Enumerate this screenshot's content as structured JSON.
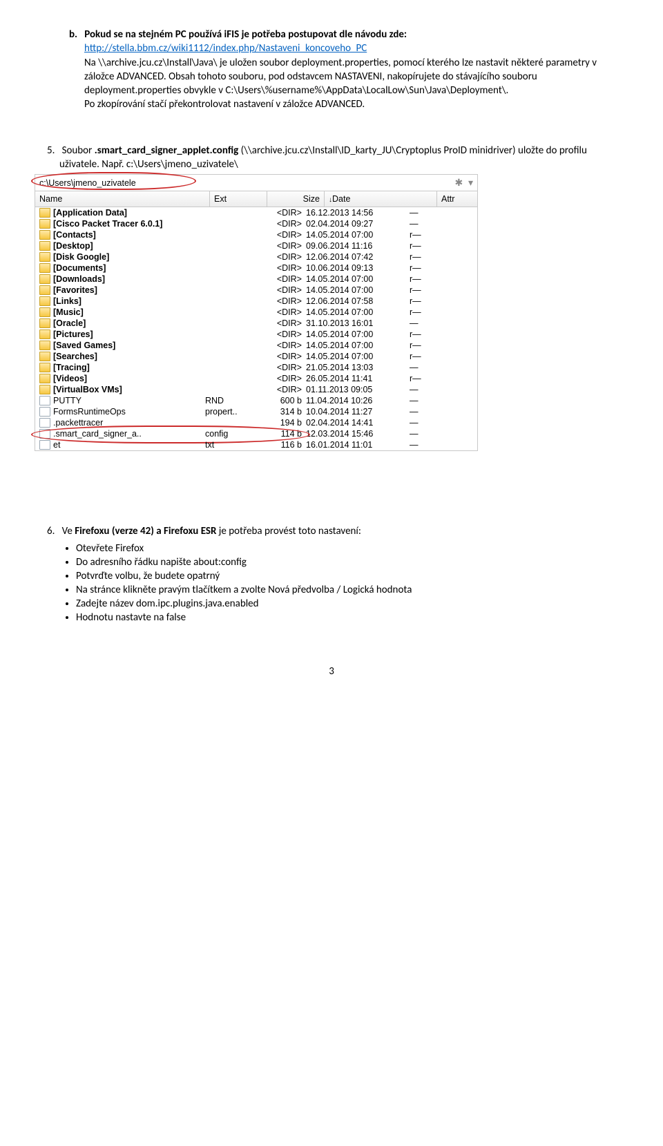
{
  "sectionB": {
    "label": "b.",
    "lead_bold": "Pokud se na stejném PC používá iFIS je potřeba postupovat dle návodu zde:",
    "link_text": "http://stella.bbm.cz/wiki1112/index.php/Nastaveni_koncoveho_PC",
    "line2": "Na \\\\archive.jcu.cz\\Install\\Java\\ je uložen soubor deployment.properties, pomocí kterého lze nastavit některé parametry v záložce ADVANCED. Obsah tohoto souboru, pod odstavcem NASTAVENI, nakopírujete do stávajícího souboru deployment.properties  obvykle v C:\\Users\\%username%\\AppData\\LocalLow\\Sun\\Java\\Deployment\\.",
    "line3": "Po zkopírování stačí překontrolovat nastavení v záložce ADVANCED."
  },
  "step5": {
    "num": "5.",
    "pre": "Soubor",
    "bold": ".smart_card_signer_applet.config",
    "post": " (\\\\archive.jcu.cz\\Install\\ID_karty_JU\\Cryptoplus ProID minidriver) uložte do profilu uživatele. Např. c:\\Users\\jmeno_uzivatele\\"
  },
  "fm": {
    "path": "c:\\Users\\jmeno_uzivatele",
    "headers": {
      "name": "Name",
      "ext": "Ext",
      "size": "Size",
      "date": "Date",
      "attr": "Attr"
    },
    "rows": [
      {
        "t": "d",
        "n": "[Application Data]",
        "e": "",
        "s": "<DIR>",
        "d": "16.12.2013 14:56",
        "a": "—"
      },
      {
        "t": "d",
        "n": "[Cisco Packet Tracer 6.0.1]",
        "e": "",
        "s": "<DIR>",
        "d": "02.04.2014 09:27",
        "a": "—"
      },
      {
        "t": "d",
        "n": "[Contacts]",
        "e": "",
        "s": "<DIR>",
        "d": "14.05.2014 07:00",
        "a": "r—"
      },
      {
        "t": "d",
        "n": "[Desktop]",
        "e": "",
        "s": "<DIR>",
        "d": "09.06.2014 11:16",
        "a": "r—"
      },
      {
        "t": "d",
        "n": "[Disk Google]",
        "e": "",
        "s": "<DIR>",
        "d": "12.06.2014 07:42",
        "a": "r—"
      },
      {
        "t": "d",
        "n": "[Documents]",
        "e": "",
        "s": "<DIR>",
        "d": "10.06.2014 09:13",
        "a": "r—"
      },
      {
        "t": "d",
        "n": "[Downloads]",
        "e": "",
        "s": "<DIR>",
        "d": "14.05.2014 07:00",
        "a": "r—"
      },
      {
        "t": "d",
        "n": "[Favorites]",
        "e": "",
        "s": "<DIR>",
        "d": "14.05.2014 07:00",
        "a": "r—"
      },
      {
        "t": "d",
        "n": "[Links]",
        "e": "",
        "s": "<DIR>",
        "d": "12.06.2014 07:58",
        "a": "r—"
      },
      {
        "t": "d",
        "n": "[Music]",
        "e": "",
        "s": "<DIR>",
        "d": "14.05.2014 07:00",
        "a": "r—"
      },
      {
        "t": "d",
        "n": "[Oracle]",
        "e": "",
        "s": "<DIR>",
        "d": "31.10.2013 16:01",
        "a": "—"
      },
      {
        "t": "d",
        "n": "[Pictures]",
        "e": "",
        "s": "<DIR>",
        "d": "14.05.2014 07:00",
        "a": "r—"
      },
      {
        "t": "d",
        "n": "[Saved Games]",
        "e": "",
        "s": "<DIR>",
        "d": "14.05.2014 07:00",
        "a": "r—"
      },
      {
        "t": "d",
        "n": "[Searches]",
        "e": "",
        "s": "<DIR>",
        "d": "14.05.2014 07:00",
        "a": "r—"
      },
      {
        "t": "d",
        "n": "[Tracing]",
        "e": "",
        "s": "<DIR>",
        "d": "21.05.2014 13:03",
        "a": "—"
      },
      {
        "t": "d",
        "n": "[Videos]",
        "e": "",
        "s": "<DIR>",
        "d": "26.05.2014 11:41",
        "a": "r—"
      },
      {
        "t": "d",
        "n": "[VirtualBox VMs]",
        "e": "",
        "s": "<DIR>",
        "d": "01.11.2013 09:05",
        "a": "—"
      },
      {
        "t": "f",
        "n": "PUTTY",
        "e": "RND",
        "s": "600 b",
        "d": "11.04.2014 10:26",
        "a": "—"
      },
      {
        "t": "f",
        "n": "FormsRuntimeOps",
        "e": "propert..",
        "s": "314 b",
        "d": "10.04.2014 11:27",
        "a": "—"
      },
      {
        "t": "f",
        "n": ".packettracer",
        "e": "",
        "s": "194 b",
        "d": "02.04.2014 14:41",
        "a": "—"
      },
      {
        "t": "f",
        "n": ".smart_card_signer_a..",
        "e": "config",
        "s": "114 b",
        "d": "12.03.2014 15:46",
        "a": "—",
        "hl": true
      },
      {
        "t": "f",
        "n": "et",
        "e": "txt",
        "s": "116 b",
        "d": "16.01.2014 11:01",
        "a": "—"
      }
    ]
  },
  "step6": {
    "num": "6.",
    "text_pre": "Ve ",
    "text_bold": "Firefoxu (verze 42) a Firefoxu ESR",
    "text_post": "  je potřeba provést toto nastavení:",
    "bullets": [
      "Otevřete Firefox",
      "Do adresního řádku napište about:config",
      "Potvrďte volbu, že budete opatrný",
      "Na stránce klikněte pravým tlačítkem a zvolte Nová předvolba / Logická hodnota",
      "Zadejte název dom.ipc.plugins.java.enabled",
      "Hodnotu nastavte na false"
    ]
  },
  "page_number": "3"
}
